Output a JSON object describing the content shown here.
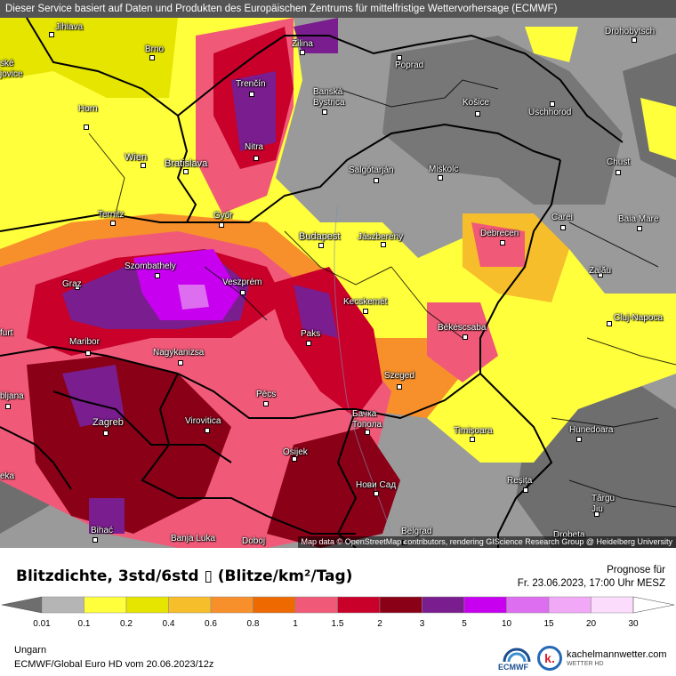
{
  "header_text": "Dieser Service basiert auf Daten und Produkten des Europäischen Zentrums für mittelfristige Wettervorhersage (ECMWF)",
  "attribution": "Map data © OpenStreetMap contributors, rendering GIScience Research Group @ Heidelberg University",
  "cities": [
    {
      "name": "Jihlava",
      "key": "jihlava"
    },
    {
      "name": "Brno",
      "key": "brno"
    },
    {
      "name": "Žilina",
      "key": "zilina"
    },
    {
      "name": "Poprad",
      "key": "poprad"
    },
    {
      "name": "Drohobytsch",
      "key": "drohobytsch"
    },
    {
      "name": "Trenčín",
      "key": "trencin"
    },
    {
      "name": "Banská Bystrica",
      "key": "banska-bystrica"
    },
    {
      "name": "Košice",
      "key": "kosice"
    },
    {
      "name": "Uschhorod",
      "key": "uschhorod"
    },
    {
      "name": "Horn",
      "key": "horn"
    },
    {
      "name": "Nitra",
      "key": "nitra"
    },
    {
      "name": "Wien",
      "key": "wien"
    },
    {
      "name": "Bratislava",
      "key": "bratislava"
    },
    {
      "name": "Salgótarján",
      "key": "salgotarjan"
    },
    {
      "name": "Miskolc",
      "key": "miskolc"
    },
    {
      "name": "Chust",
      "key": "chust"
    },
    {
      "name": "Ternitz",
      "key": "ternitz"
    },
    {
      "name": "Győr",
      "key": "gyor"
    },
    {
      "name": "Budapest",
      "key": "budapest"
    },
    {
      "name": "Jászberény",
      "key": "jaszbereny"
    },
    {
      "name": "Debrecen",
      "key": "debrecen"
    },
    {
      "name": "Carei",
      "key": "carei"
    },
    {
      "name": "Baia Mare",
      "key": "baia-mare"
    },
    {
      "name": "Szombathely",
      "key": "szombathely"
    },
    {
      "name": "Graz",
      "key": "graz"
    },
    {
      "name": "Veszprém",
      "key": "veszprem"
    },
    {
      "name": "Zalău",
      "key": "zalau"
    },
    {
      "name": "Kecskemét",
      "key": "kecskemet"
    },
    {
      "name": "Cluj-Napoca",
      "key": "cluj-napoca"
    },
    {
      "name": "Békéscsaba",
      "key": "bekescsaba"
    },
    {
      "name": "Maribor",
      "key": "maribor"
    },
    {
      "name": "Paks",
      "key": "paks"
    },
    {
      "name": "Nagykanizsa",
      "key": "nagykanizsa"
    },
    {
      "name": "Szeged",
      "key": "szeged"
    },
    {
      "name": "Pécs",
      "key": "pecs"
    },
    {
      "name": "Бачка Топола",
      "key": "backa-topola"
    },
    {
      "name": "Zagreb",
      "key": "zagreb"
    },
    {
      "name": "Virovitica",
      "key": "virovitica"
    },
    {
      "name": "Timișoara",
      "key": "timisoara"
    },
    {
      "name": "Hunedoara",
      "key": "hunedoara"
    },
    {
      "name": "Osijek",
      "key": "osijek"
    },
    {
      "name": "Нови Сад",
      "key": "novi-sad"
    },
    {
      "name": "Reșița",
      "key": "resita"
    },
    {
      "name": "Târgu Jiu",
      "key": "targu-jiu"
    },
    {
      "name": "Bihać",
      "key": "bihac"
    },
    {
      "name": "Banja Luka",
      "key": "banja-luka"
    },
    {
      "name": "Doboj",
      "key": "doboj"
    },
    {
      "name": "Belgrad",
      "key": "belgrad"
    },
    {
      "name": "Drobeta",
      "key": "drobeta"
    },
    {
      "name": "ské\njovice",
      "key": "ceske-budejovice"
    },
    {
      "name": "furt",
      "key": "klagenfurt"
    },
    {
      "name": "bljana",
      "key": "ljubljana"
    },
    {
      "name": "eka",
      "key": "rijeka"
    }
  ],
  "legend": {
    "title": "Blitzdichte, 3std/6std",
    "unit": "(Blitze/km²/Tag)",
    "glyph": "▯",
    "forecast_label": "Prognose für",
    "forecast_time": "Fr. 23.06.2023, 17:00 Uhr MESZ",
    "ticks": [
      "0.01",
      "0.1",
      "0.2",
      "0.4",
      "0.6",
      "0.8",
      "1",
      "1.5",
      "2",
      "3",
      "5",
      "10",
      "15",
      "20",
      "30"
    ],
    "colors": [
      "#6e6e6e",
      "#b5b5b5",
      "#ffff3c",
      "#e5e500",
      "#f6be2a",
      "#f7902b",
      "#ee6a00",
      "#f05a78",
      "#c8002a",
      "#8a0017",
      "#7a1d8e",
      "#c800f0",
      "#de6ef0",
      "#f0a8f7",
      "#fcdcfc",
      "#ffffff"
    ]
  },
  "footer": {
    "region": "Ungarn",
    "model": "ECMWF/Global Euro HD vom  20.06.2023/12z",
    "ecmwf_label": "ECMWF",
    "brand": "kachelmannwetter.com",
    "brand_sub": "WETTER HD",
    "brand_logo": "k."
  }
}
